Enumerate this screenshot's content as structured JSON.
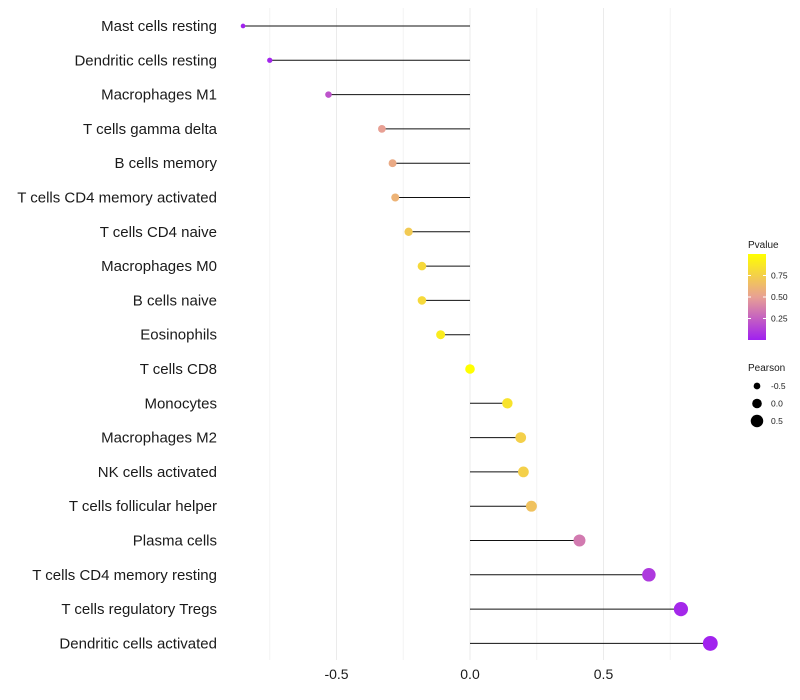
{
  "chart_data": {
    "type": "lollipop",
    "title": "",
    "xlabel": "",
    "ylabel": "",
    "xlim": [
      -0.88,
      0.93
    ],
    "x_ticks": [
      -0.5,
      0.0,
      0.5
    ],
    "x_tick_labels": [
      "-0.5",
      "0.0",
      "0.5"
    ],
    "grid": true,
    "categories": [
      "Mast cells resting",
      "Dendritic cells resting",
      "Macrophages M1",
      "T cells gamma delta",
      "B cells memory",
      "T cells CD4 memory activated",
      "T cells CD4 naive",
      "Macrophages M0",
      "B cells naive",
      "Eosinophils",
      "T cells CD8",
      "Monocytes",
      "Macrophages M2",
      "NK cells activated",
      "T cells follicular helper",
      "Plasma cells",
      "T cells CD4 memory resting",
      "T cells regulatory  Tregs",
      "Dendritic cells activated"
    ],
    "pearson": [
      -0.85,
      -0.75,
      -0.53,
      -0.33,
      -0.29,
      -0.28,
      -0.23,
      -0.18,
      -0.18,
      -0.11,
      0.0,
      0.14,
      0.19,
      0.2,
      0.23,
      0.41,
      0.67,
      0.79,
      0.9
    ],
    "pvalue": [
      0.01,
      0.02,
      0.2,
      0.5,
      0.55,
      0.6,
      0.72,
      0.8,
      0.8,
      0.9,
      1.0,
      0.85,
      0.75,
      0.75,
      0.68,
      0.35,
      0.1,
      0.03,
      0.01
    ],
    "legend_pvalue": {
      "title": "Pvalue",
      "ticks": [
        0.75,
        0.5,
        0.25
      ],
      "tick_labels": [
        "0.75",
        "0.50",
        "0.25"
      ],
      "range": [
        0.0,
        1.0
      ],
      "color_low": "#a020f0",
      "color_mid": "#e8a094",
      "color_high": "#ffff00"
    },
    "legend_pearson": {
      "title": "Pearson",
      "values": [
        -0.5,
        0.0,
        0.5
      ],
      "labels": [
        "-0.5",
        "0.0",
        "0.5"
      ]
    }
  }
}
